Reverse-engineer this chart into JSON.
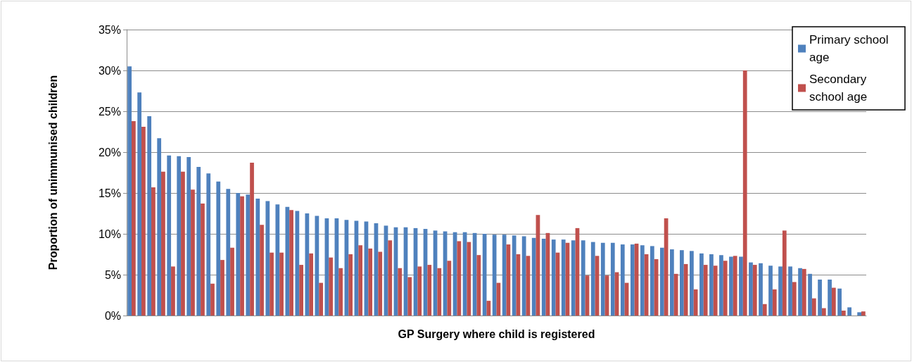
{
  "chart_data": {
    "type": "bar",
    "xlabel": "GP Surgery where child is registered",
    "ylabel": "Proportion of unimmunised children",
    "categories": [
      null,
      null,
      null,
      null,
      null,
      null,
      null,
      null,
      null,
      null,
      null,
      null,
      null,
      null,
      null,
      null,
      null,
      null,
      null,
      null,
      null,
      null,
      null,
      null,
      null,
      null,
      null,
      null,
      null,
      null,
      null,
      null,
      null,
      null,
      null,
      null,
      null,
      null,
      null,
      null,
      null,
      null,
      null,
      null,
      null,
      null,
      null,
      null,
      null,
      null,
      null,
      null,
      null,
      null,
      null,
      null,
      null,
      null,
      null,
      null,
      null,
      null,
      null,
      null,
      null,
      null,
      null,
      null,
      null,
      null,
      null,
      null,
      null,
      null,
      null
    ],
    "series": [
      {
        "name": "Primary school age",
        "color": "#4f81bd",
        "values": [
          30.5,
          27.3,
          24.4,
          21.7,
          19.6,
          19.5,
          19.4,
          18.2,
          17.4,
          16.4,
          15.5,
          15.0,
          14.8,
          14.3,
          14.0,
          13.6,
          13.3,
          12.8,
          12.5,
          12.2,
          11.9,
          11.9,
          11.7,
          11.6,
          11.5,
          11.3,
          11.0,
          10.8,
          10.8,
          10.7,
          10.6,
          10.4,
          10.3,
          10.2,
          10.2,
          10.1,
          10.0,
          9.9,
          9.9,
          9.8,
          9.7,
          9.5,
          9.4,
          9.3,
          9.3,
          9.2,
          9.2,
          9.0,
          8.9,
          8.9,
          8.7,
          8.7,
          8.6,
          8.5,
          8.3,
          8.1,
          8.0,
          7.9,
          7.6,
          7.5,
          7.4,
          7.2,
          7.2,
          6.5,
          6.4,
          6.1,
          6.0,
          6.0,
          5.8,
          5.1,
          4.4,
          4.4,
          3.3,
          1.0,
          0.4
        ]
      },
      {
        "name": "Secondary school age",
        "color": "#c0504d",
        "values": [
          23.8,
          23.1,
          15.7,
          17.6,
          6.0,
          17.6,
          15.4,
          13.7,
          3.9,
          6.8,
          8.3,
          14.6,
          18.7,
          11.1,
          7.7,
          7.7,
          12.9,
          6.2,
          7.6,
          4.0,
          7.1,
          5.8,
          7.5,
          8.6,
          8.2,
          7.8,
          9.2,
          5.8,
          4.7,
          6.0,
          6.2,
          5.8,
          6.7,
          9.1,
          9.0,
          7.4,
          1.8,
          4.0,
          8.7,
          7.5,
          7.3,
          12.3,
          10.1,
          7.7,
          8.9,
          10.7,
          4.9,
          7.3,
          4.9,
          5.3,
          4.0,
          8.8,
          7.5,
          6.9,
          11.9,
          5.1,
          6.3,
          3.2,
          6.2,
          6.1,
          6.7,
          7.3,
          30.0,
          6.2,
          1.4,
          3.2,
          10.4,
          4.1,
          5.7,
          2.1,
          0.9,
          3.4,
          0.6,
          0,
          0.5
        ]
      }
    ],
    "ylim": [
      0,
      35
    ],
    "yticks": [
      {
        "value": 0,
        "label": "0%"
      },
      {
        "value": 5,
        "label": "5%"
      },
      {
        "value": 10,
        "label": "10%"
      },
      {
        "value": 15,
        "label": "15%"
      },
      {
        "value": 20,
        "label": "20%"
      },
      {
        "value": 25,
        "label": "25%"
      },
      {
        "value": 30,
        "label": "30%"
      },
      {
        "value": 35,
        "label": "35%"
      }
    ],
    "grid": "y",
    "legend": "top right"
  }
}
